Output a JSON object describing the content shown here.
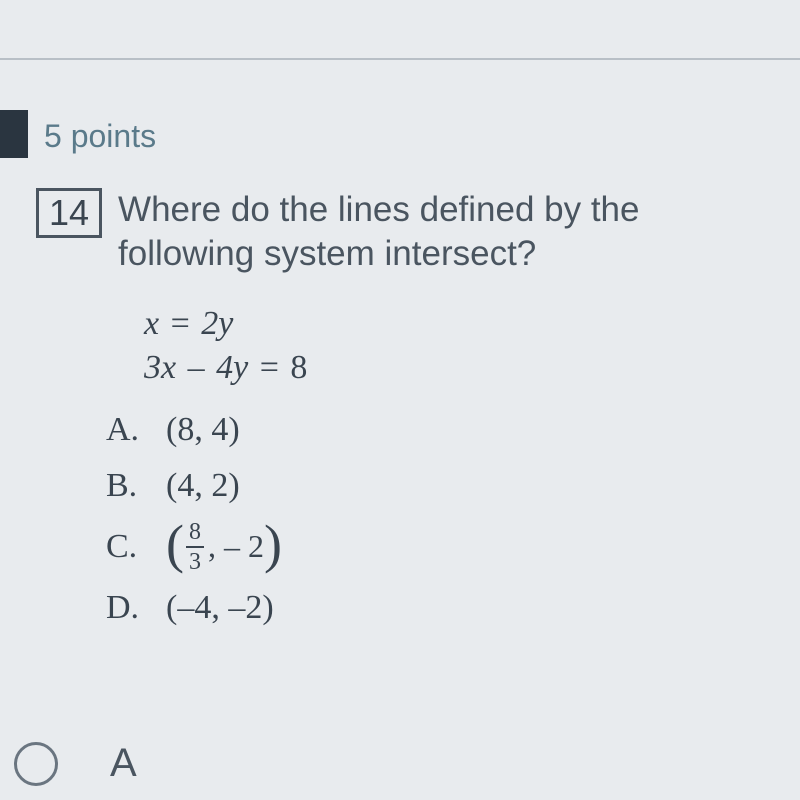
{
  "points_label": "5 points",
  "question_number": "14",
  "question_text": "Where do the lines defined by the following system intersect?",
  "equations": {
    "eq1_lhs_var1": "x",
    "eq1_eq": " = ",
    "eq1_rhs": "2y",
    "eq2_part1": "3x",
    "eq2_minus": " – ",
    "eq2_part2": "4y",
    "eq2_eq": " = ",
    "eq2_rhs": "8"
  },
  "choices": {
    "a_letter": "A.",
    "a_value": "(8, 4)",
    "b_letter": "B.",
    "b_value": "(4, 2)",
    "c_letter": "C.",
    "c_frac_num": "8",
    "c_frac_den": "3",
    "c_rest": ", – 2",
    "d_letter": "D.",
    "d_value": "(–4, –2)"
  },
  "selected_answer_label": "A",
  "colors": {
    "background": "#e8ebee",
    "divider": "#b8bfc6",
    "dark_tab": "#2a3540",
    "points_text": "#5a7a8a",
    "main_text": "#4a5560",
    "eq_text": "#3a4550",
    "radio_border": "#6a7580"
  }
}
